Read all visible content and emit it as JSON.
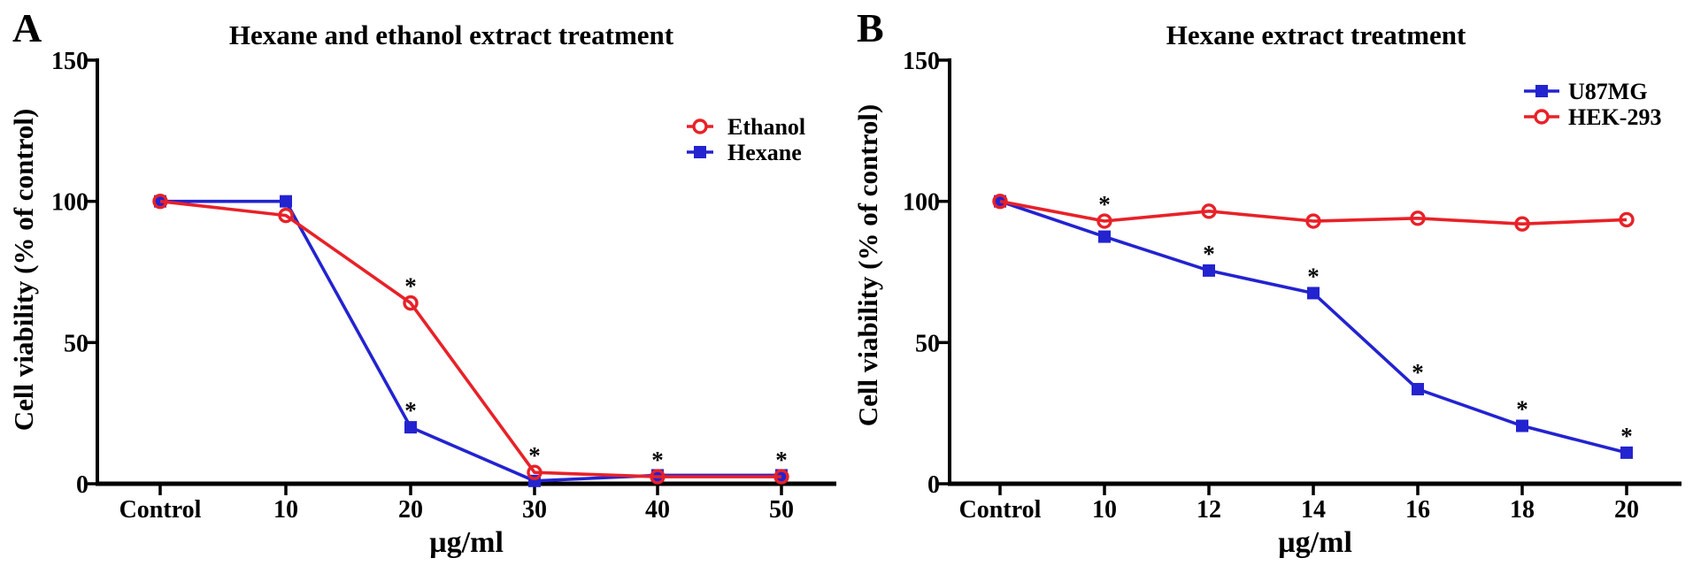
{
  "figure": {
    "background": "#ffffff",
    "significance_symbol": "*",
    "axis_color": "#000000"
  },
  "chart_data": [
    {
      "type": "line",
      "panel_label": "A",
      "title": "Hexane and ethanol extract treatment",
      "xlabel": "µg/ml",
      "ylabel": "Cell viability (% of control)",
      "ylim": [
        0,
        150
      ],
      "yticks": [
        0,
        50,
        100,
        150
      ],
      "categories": [
        "Control",
        "10",
        "20",
        "30",
        "40",
        "50"
      ],
      "grid": false,
      "legend_position": "upper-right",
      "series": [
        {
          "name": "Ethanol",
          "color": "#e82128",
          "marker": "open-circle",
          "z": 2,
          "values": [
            100,
            95,
            64,
            4,
            2.5,
            2.5
          ],
          "significant": [
            false,
            false,
            true,
            true,
            true,
            true
          ]
        },
        {
          "name": "Hexane",
          "color": "#2323d0",
          "marker": "filled-square",
          "z": 1,
          "values": [
            100,
            100,
            20,
            1,
            3,
            3
          ],
          "significant": [
            false,
            false,
            true,
            false,
            false,
            false
          ]
        }
      ]
    },
    {
      "type": "line",
      "panel_label": "B",
      "title": "Hexane extract treatment",
      "xlabel": "µg/ml",
      "ylabel": "Cell viability (% of control)",
      "ylim": [
        0,
        150
      ],
      "yticks": [
        0,
        50,
        100,
        150
      ],
      "categories": [
        "Control",
        "10",
        "12",
        "14",
        "16",
        "18",
        "20"
      ],
      "grid": false,
      "legend_position": "upper-right",
      "series": [
        {
          "name": "U87MG",
          "color": "#2323d0",
          "marker": "filled-square",
          "z": 1,
          "values": [
            100,
            87.5,
            75.5,
            67.5,
            33.5,
            20.5,
            11
          ],
          "significant": [
            false,
            false,
            true,
            true,
            true,
            true,
            true
          ]
        },
        {
          "name": "HEK-293",
          "color": "#e82128",
          "marker": "open-circle",
          "z": 2,
          "values": [
            100,
            93,
            96.5,
            93,
            94,
            92,
            93.5
          ],
          "significant": [
            false,
            true,
            false,
            false,
            false,
            false,
            false
          ]
        }
      ]
    }
  ]
}
